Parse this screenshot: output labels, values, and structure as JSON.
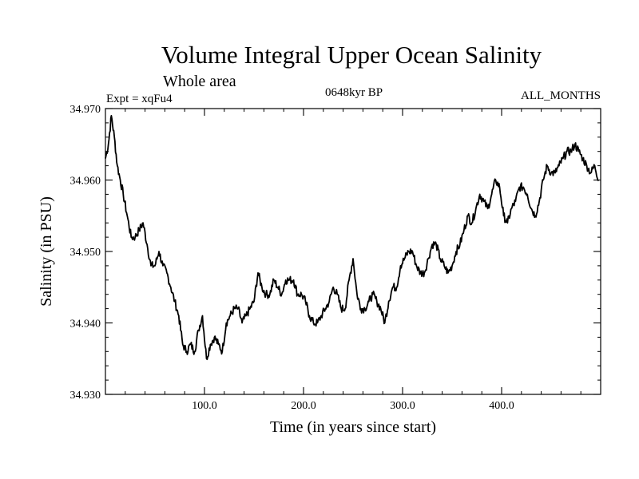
{
  "chart_data": {
    "type": "line",
    "title": "Volume Integral Upper Ocean Salinity",
    "subtitle": "Whole area",
    "left_label": "Expt = xqFu4",
    "center_label": "0648kyr BP",
    "right_label": "ALL_MONTHS",
    "xlabel": "Time (in years since start)",
    "ylabel": "Salinity (in PSU)",
    "xlim": [
      0,
      500
    ],
    "ylim": [
      34.93,
      34.97
    ],
    "xticks": [
      100,
      200,
      300,
      400
    ],
    "xtick_labels": [
      "100.0",
      "200.0",
      "300.0",
      "400.0"
    ],
    "yticks": [
      34.93,
      34.94,
      34.95,
      34.96,
      34.97
    ],
    "ytick_labels": [
      "34.930",
      "34.940",
      "34.950",
      "34.960",
      "34.970"
    ],
    "series": [
      {
        "name": "salinity",
        "x": [
          0,
          3,
          6,
          9,
          12,
          15,
          18,
          22,
          26,
          30,
          34,
          38,
          42,
          46,
          50,
          54,
          58,
          62,
          66,
          70,
          74,
          78,
          82,
          86,
          90,
          94,
          98,
          102,
          106,
          110,
          114,
          118,
          122,
          126,
          130,
          134,
          138,
          142,
          146,
          150,
          154,
          158,
          162,
          166,
          170,
          174,
          178,
          182,
          186,
          190,
          194,
          198,
          202,
          206,
          210,
          214,
          218,
          222,
          226,
          230,
          234,
          238,
          242,
          246,
          250,
          254,
          258,
          262,
          266,
          270,
          274,
          278,
          282,
          286,
          290,
          294,
          298,
          302,
          306,
          310,
          314,
          318,
          322,
          326,
          330,
          334,
          338,
          342,
          346,
          350,
          354,
          358,
          362,
          366,
          370,
          374,
          378,
          382,
          386,
          390,
          394,
          398,
          402,
          406,
          410,
          414,
          418,
          422,
          426,
          430,
          434,
          438,
          442,
          446,
          450,
          454,
          458,
          462,
          466,
          470,
          474,
          478,
          482,
          486,
          490,
          494,
          498
        ],
        "values": [
          34.963,
          34.965,
          34.969,
          34.966,
          34.962,
          34.96,
          34.958,
          34.955,
          34.952,
          34.952,
          34.953,
          34.954,
          34.951,
          34.948,
          34.948,
          34.95,
          34.948,
          34.947,
          34.945,
          34.943,
          34.941,
          34.937,
          34.936,
          34.937,
          34.936,
          34.939,
          34.941,
          34.935,
          34.937,
          34.938,
          34.937,
          34.936,
          34.94,
          34.941,
          34.942,
          34.942,
          34.94,
          34.941,
          34.942,
          34.943,
          34.947,
          34.945,
          34.944,
          34.944,
          34.946,
          34.945,
          34.944,
          34.946,
          34.946,
          34.946,
          34.944,
          34.944,
          34.943,
          34.941,
          34.94,
          34.94,
          34.941,
          34.942,
          34.943,
          34.945,
          34.944,
          34.942,
          34.942,
          34.946,
          34.949,
          34.944,
          34.942,
          34.942,
          34.943,
          34.944,
          34.943,
          34.942,
          34.94,
          34.943,
          34.945,
          34.945,
          34.948,
          34.949,
          34.95,
          34.95,
          34.948,
          34.947,
          34.947,
          34.949,
          34.951,
          34.951,
          34.949,
          34.948,
          34.947,
          34.948,
          34.95,
          34.951,
          34.953,
          34.955,
          34.954,
          34.956,
          34.958,
          34.957,
          34.956,
          34.958,
          34.96,
          34.959,
          34.955,
          34.954,
          34.956,
          34.957,
          34.959,
          34.959,
          34.958,
          34.956,
          34.955,
          34.957,
          34.96,
          34.962,
          34.961,
          34.961,
          34.962,
          34.963,
          34.964,
          34.964,
          34.965,
          34.964,
          34.963,
          34.962,
          34.961,
          34.962,
          34.96
        ]
      }
    ]
  }
}
